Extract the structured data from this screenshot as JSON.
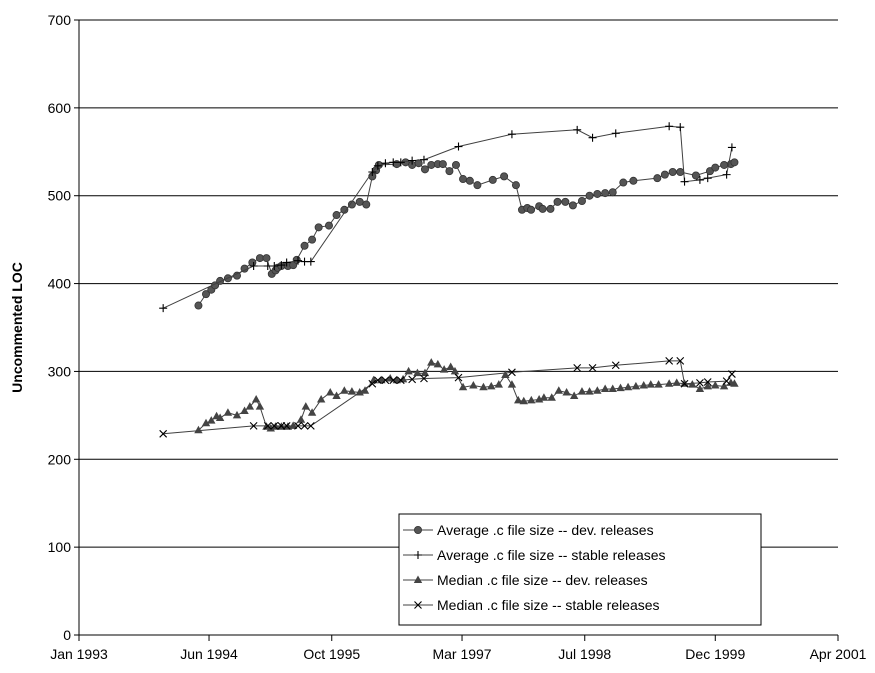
{
  "chart_data": {
    "type": "line",
    "title": "",
    "xlabel": "",
    "ylabel": "Uncommented LOC",
    "ylim": [
      0,
      700
    ],
    "yticks": [
      "0",
      "100",
      "200",
      "300",
      "400",
      "500",
      "600",
      "700"
    ],
    "xlim": [
      "1993-01-01",
      "2001-04-01"
    ],
    "xticks": [
      {
        "date": "1993-01-01",
        "label": "Jan 1993"
      },
      {
        "date": "1994-06-01",
        "label": "Jun 1994"
      },
      {
        "date": "1995-10-01",
        "label": "Oct 1995"
      },
      {
        "date": "1997-03-01",
        "label": "Mar 1997"
      },
      {
        "date": "1998-07-01",
        "label": "Jul 1998"
      },
      {
        "date": "1999-12-01",
        "label": "Dec 1999"
      },
      {
        "date": "2001-04-01",
        "label": "Apr 2001"
      }
    ],
    "grid": "horizontal",
    "legend": "bottom-right",
    "series": [
      {
        "name": "Average .c file size -- dev. releases",
        "marker": "circle",
        "x": [
          "1994-04-20",
          "1994-05-20",
          "1994-06-10",
          "1994-06-25",
          "1994-07-15",
          "1994-08-15",
          "1994-09-20",
          "1994-10-20",
          "1994-11-20",
          "1994-12-20",
          "1995-01-15",
          "1995-02-05",
          "1995-02-20",
          "1995-02-28",
          "1995-03-15",
          "1995-04-10",
          "1995-05-01",
          "1995-05-15",
          "1995-06-15",
          "1995-07-15",
          "1995-08-10",
          "1995-09-20",
          "1995-10-20",
          "1995-11-20",
          "1995-12-20",
          "1996-01-20",
          "1996-02-15",
          "1996-03-10",
          "1996-03-25",
          "1996-04-05",
          "1996-06-15",
          "1996-07-20",
          "1996-08-15",
          "1996-09-10",
          "1996-10-05",
          "1996-10-30",
          "1996-11-25",
          "1996-12-15",
          "1997-01-10",
          "1997-02-05",
          "1997-03-05",
          "1997-04-01",
          "1997-05-01",
          "1997-07-01",
          "1997-08-15",
          "1997-10-01",
          "1997-10-25",
          "1997-11-15",
          "1997-11-30",
          "1998-01-01",
          "1998-01-15",
          "1998-02-15",
          "1998-03-15",
          "1998-04-15",
          "1998-05-15",
          "1998-06-20",
          "1998-07-20",
          "1998-08-20",
          "1998-09-20",
          "1998-10-20",
          "1998-12-01",
          "1999-01-10",
          "1999-04-15",
          "1999-05-15",
          "1999-06-15",
          "1999-07-15",
          "1999-09-15",
          "1999-11-10",
          "1999-12-01",
          "2000-01-05",
          "2000-02-01",
          "2000-02-15"
        ],
        "y": [
          375,
          388,
          393,
          398,
          403,
          406,
          409,
          417,
          424,
          429,
          429,
          411,
          415,
          418,
          420,
          420,
          421,
          427,
          443,
          450,
          464,
          466,
          478,
          484,
          490,
          493,
          490,
          522,
          529,
          535,
          536,
          538,
          535,
          537,
          530,
          535,
          536,
          536,
          528,
          535,
          519,
          517,
          512,
          518,
          522,
          512,
          484,
          486,
          484,
          488,
          485,
          485,
          493,
          493,
          489,
          494,
          500,
          502,
          503,
          504,
          515,
          517,
          520,
          524,
          527,
          527,
          523,
          528,
          532,
          535,
          536,
          538
        ]
      },
      {
        "name": "Average .c file size -- stable releases",
        "marker": "plus",
        "x": [
          "1993-12-01",
          "1994-11-25",
          "1995-01-20",
          "1995-02-15",
          "1995-03-15",
          "1995-04-05",
          "1995-05-20",
          "1995-06-15",
          "1995-07-10",
          "1996-03-10",
          "1996-04-01",
          "1996-05-01",
          "1996-06-01",
          "1996-07-01",
          "1996-08-15",
          "1996-10-01",
          "1997-02-15",
          "1997-09-15",
          "1998-06-01",
          "1998-08-01",
          "1998-11-01",
          "1999-06-01",
          "1999-07-15",
          "1999-08-01",
          "1999-10-01",
          "1999-11-01",
          "2000-01-15",
          "2000-02-05"
        ],
        "y": [
          372,
          420,
          420,
          420,
          421,
          424,
          426,
          425,
          425,
          527,
          534,
          537,
          538,
          538,
          540,
          541,
          556,
          570,
          575,
          566,
          571,
          579,
          578,
          516,
          518,
          520,
          524,
          555
        ]
      },
      {
        "name": "Median .c file size -- dev. releases",
        "marker": "triangle",
        "x": [
          "1994-04-20",
          "1994-05-20",
          "1994-06-10",
          "1994-07-01",
          "1994-07-15",
          "1994-08-15",
          "1994-09-20",
          "1994-10-20",
          "1994-11-10",
          "1994-12-05",
          "1994-12-20",
          "1995-01-15",
          "1995-02-01",
          "1995-02-20",
          "1995-03-15",
          "1995-04-10",
          "1995-05-01",
          "1995-06-01",
          "1995-06-20",
          "1995-07-15",
          "1995-08-20",
          "1995-09-25",
          "1995-10-20",
          "1995-11-20",
          "1995-12-20",
          "1996-01-20",
          "1996-02-10",
          "1996-03-15",
          "1996-04-15",
          "1996-05-20",
          "1996-06-15",
          "1996-07-10",
          "1996-08-01",
          "1996-09-05",
          "1996-10-05",
          "1996-10-30",
          "1996-11-25",
          "1996-12-20",
          "1997-01-15",
          "1997-02-01",
          "1997-03-05",
          "1997-04-15",
          "1997-05-25",
          "1997-06-25",
          "1997-07-25",
          "1997-08-20",
          "1997-09-15",
          "1997-10-10",
          "1997-11-01",
          "1997-12-01",
          "1998-01-01",
          "1998-01-20",
          "1998-02-20",
          "1998-03-20",
          "1998-04-20",
          "1998-05-20",
          "1998-06-20",
          "1998-07-20",
          "1998-08-20",
          "1998-09-20",
          "1998-10-20",
          "1998-11-20",
          "1998-12-20",
          "1999-01-20",
          "1999-02-20",
          "1999-03-20",
          "1999-04-20",
          "1999-06-01",
          "1999-07-01",
          "1999-08-01",
          "1999-09-01",
          "1999-10-01",
          "1999-11-01",
          "1999-12-01",
          "2000-01-05",
          "2000-02-01",
          "2000-02-15"
        ],
        "y": [
          233,
          241,
          244,
          249,
          247,
          253,
          250,
          255,
          260,
          268,
          260,
          237,
          235,
          237,
          237,
          237,
          238,
          245,
          260,
          253,
          268,
          276,
          272,
          278,
          277,
          276,
          278,
          290,
          290,
          292,
          290,
          291,
          300,
          298,
          298,
          310,
          308,
          302,
          305,
          300,
          282,
          284,
          282,
          283,
          285,
          296,
          285,
          267,
          266,
          267,
          268,
          270,
          270,
          278,
          276,
          272,
          277,
          277,
          278,
          280,
          280,
          281,
          282,
          283,
          284,
          285,
          285,
          286,
          287,
          286,
          285,
          280,
          283,
          284,
          283,
          287,
          286
        ]
      },
      {
        "name": "Median .c file size -- stable releases",
        "marker": "x",
        "x": [
          "1993-12-01",
          "1994-11-25",
          "1995-01-20",
          "1995-02-15",
          "1995-03-15",
          "1995-04-05",
          "1995-05-20",
          "1995-06-15",
          "1995-07-10",
          "1996-03-10",
          "1996-04-01",
          "1996-05-01",
          "1996-06-01",
          "1996-07-01",
          "1996-08-15",
          "1996-10-01",
          "1997-02-15",
          "1997-09-15",
          "1998-06-01",
          "1998-08-01",
          "1998-11-01",
          "1999-06-01",
          "1999-07-15",
          "1999-08-01",
          "1999-10-01",
          "1999-11-01",
          "2000-01-15",
          "2000-02-05"
        ],
        "y": [
          229,
          238,
          238,
          238,
          238,
          238,
          238,
          238,
          238,
          286,
          290,
          290,
          290,
          290,
          291,
          292,
          293,
          299,
          304,
          304,
          307,
          312,
          312,
          286,
          287,
          288,
          289,
          297
        ]
      }
    ]
  }
}
